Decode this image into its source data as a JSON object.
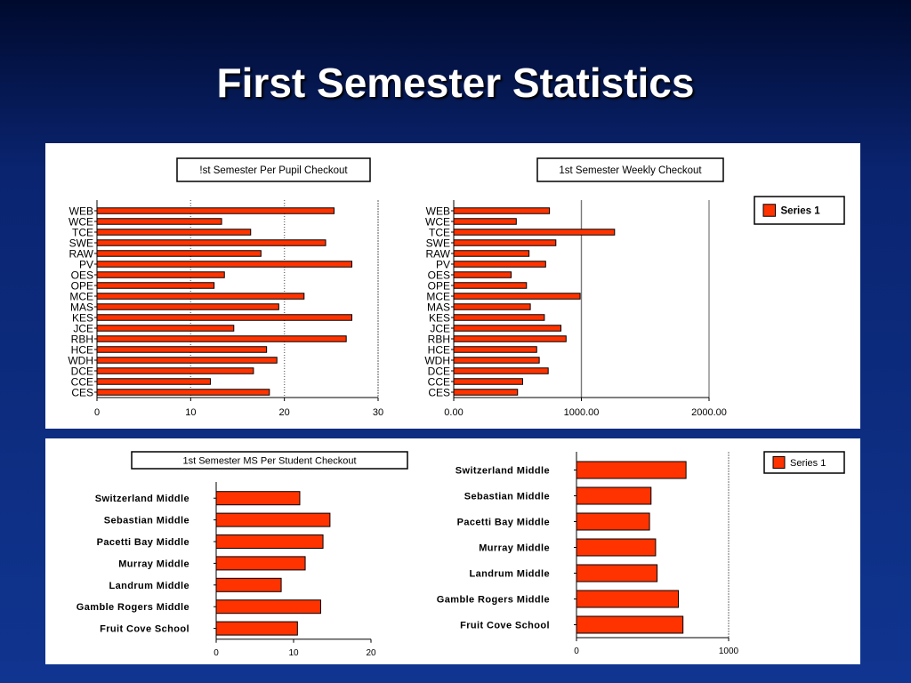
{
  "slide": {
    "title": "First Semester Statistics"
  },
  "colors": {
    "bar": "#ff3300",
    "bar_stroke": "#000000",
    "background_top": "#000a2e",
    "background_bottom": "#103590"
  },
  "chart_data": [
    {
      "type": "bar",
      "orientation": "horizontal",
      "title": "!st Semester Per Pupil Checkout",
      "categories": [
        "WEB",
        "WCE",
        "TCE",
        "SWE",
        "RAW",
        "PV",
        "OES",
        "OPE",
        "MCE",
        "MAS",
        "KES",
        "JCE",
        "RBH",
        "HCE",
        "WDH",
        "DCE",
        "CCE",
        "CES"
      ],
      "values": [
        25.3,
        13.3,
        16.4,
        24.4,
        17.5,
        27.2,
        13.6,
        12.5,
        22.1,
        19.4,
        27.2,
        14.6,
        26.6,
        18.1,
        19.2,
        16.7,
        12.1,
        18.4
      ],
      "xlim": [
        0,
        30
      ],
      "xticks": [
        "0",
        "10",
        "20",
        "30"
      ],
      "grid": true
    },
    {
      "type": "bar",
      "orientation": "horizontal",
      "title": "1st Semester Weekly Checkout",
      "categories": [
        "WEB",
        "WCE",
        "TCE",
        "SWE",
        "RAW",
        "PV",
        "OES",
        "OPE",
        "MCE",
        "MAS",
        "KES",
        "JCE",
        "RBH",
        "HCE",
        "WDH",
        "DCE",
        "CCE",
        "CES"
      ],
      "values": [
        750,
        490,
        1260,
        800,
        590,
        720,
        450,
        570,
        990,
        600,
        710,
        840,
        880,
        650,
        670,
        740,
        540,
        500
      ],
      "xlim": [
        0,
        2000
      ],
      "xticks": [
        "0.00",
        "1000.00",
        "2000.00"
      ],
      "legend": {
        "series": "Series 1",
        "position": "right"
      },
      "grid": true
    },
    {
      "type": "bar",
      "orientation": "horizontal",
      "title": "1st Semester MS Per Student Checkout",
      "categories": [
        "Switzerland Middle",
        "Sebastian Middle",
        "Pacetti Bay Middle",
        "Murray Middle",
        "Landrum Middle",
        "Gamble Rogers Middle",
        "Fruit Cove School"
      ],
      "values": [
        10.8,
        14.7,
        13.8,
        11.5,
        8.4,
        13.5,
        10.5
      ],
      "xlim": [
        0,
        20
      ],
      "xticks": [
        "0",
        "10",
        "20"
      ],
      "grid": false
    },
    {
      "type": "bar",
      "orientation": "horizontal",
      "title": "",
      "categories": [
        "Switzerland Middle",
        "Sebastian Middle",
        "Pacetti Bay Middle",
        "Murray Middle",
        "Landrum Middle",
        "Gamble Rogers Middle",
        "Fruit Cove School"
      ],
      "values": [
        720,
        490,
        480,
        520,
        530,
        670,
        700
      ],
      "xlim": [
        0,
        1000
      ],
      "xticks": [
        "0",
        "1000"
      ],
      "legend": {
        "series": "Series 1",
        "position": "top-right"
      },
      "grid": true
    }
  ]
}
